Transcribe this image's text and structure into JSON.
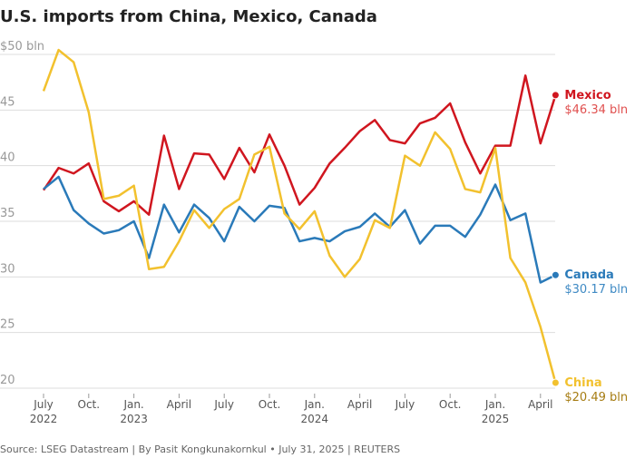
{
  "chart_data": {
    "type": "line",
    "title": "U.S. imports from China, Mexico, Canada",
    "source": "Source: LSEG Datastream | By Pasit Kongkunakornkul • July 31, 2025 | REUTERS",
    "categories": [
      [
        "July",
        "2022"
      ],
      null,
      null,
      [
        "Oct."
      ],
      null,
      null,
      [
        "Jan.",
        "2023"
      ],
      null,
      null,
      [
        "April"
      ],
      null,
      null,
      [
        "July"
      ],
      null,
      null,
      [
        "Oct."
      ],
      null,
      null,
      [
        "Jan.",
        "2024"
      ],
      null,
      null,
      [
        "April"
      ],
      null,
      null,
      [
        "July"
      ],
      null,
      null,
      [
        "Oct."
      ],
      null,
      null,
      [
        "Jan.",
        "2025"
      ],
      null,
      null,
      [
        "April"
      ],
      null
    ],
    "ylim": [
      20,
      50
    ],
    "yticks": [
      20,
      25,
      30,
      35,
      40,
      {
        "value": 45,
        "label": "45"
      },
      {
        "value": 50,
        "label": "$50 bln"
      }
    ],
    "grid": true,
    "series": [
      {
        "name": "Mexico",
        "color": "#d0161f",
        "label_color": "#e0504f",
        "values": [
          37.8,
          39.8,
          39.3,
          40.2,
          36.8,
          35.9,
          36.8,
          35.6,
          42.7,
          37.9,
          41.1,
          41.0,
          38.8,
          41.6,
          39.4,
          42.8,
          40.0,
          36.5,
          38.0,
          40.2,
          41.6,
          43.1,
          44.1,
          42.3,
          42.0,
          43.8,
          44.3,
          45.6,
          42.1,
          39.3,
          41.8,
          41.8,
          48.1,
          42.0,
          46.34
        ],
        "value_labels": [
          null,
          null,
          null,
          null,
          null,
          null,
          null,
          null,
          null,
          null,
          null,
          null,
          null,
          null,
          null,
          null,
          null,
          null,
          null,
          null,
          null,
          null,
          null,
          null,
          null,
          null,
          null,
          null,
          null,
          null,
          null,
          null,
          null,
          null,
          "$46.34 bln"
        ]
      },
      {
        "name": "Canada",
        "color": "#2a7ab9",
        "label_color": "#3f8ac4",
        "values": [
          37.9,
          39.0,
          36.0,
          34.8,
          33.9,
          34.2,
          35.0,
          31.7,
          36.5,
          34.0,
          36.5,
          35.3,
          33.2,
          36.3,
          35.0,
          36.4,
          36.2,
          33.2,
          33.5,
          33.2,
          34.1,
          34.5,
          35.7,
          34.5,
          36.0,
          33.0,
          34.6,
          34.6,
          33.6,
          35.6,
          38.3,
          35.1,
          35.7,
          29.5,
          30.17
        ],
        "value_labels": [
          null,
          null,
          null,
          null,
          null,
          null,
          null,
          null,
          null,
          null,
          null,
          null,
          null,
          null,
          null,
          null,
          null,
          null,
          null,
          null,
          null,
          null,
          null,
          null,
          null,
          null,
          null,
          null,
          null,
          null,
          null,
          null,
          null,
          null,
          "$30.17 bln"
        ]
      },
      {
        "name": "China",
        "color": "#f2c12e",
        "label_color": "#a67c12",
        "values": [
          46.7,
          50.4,
          49.3,
          44.8,
          37.0,
          37.3,
          38.2,
          30.7,
          30.9,
          33.2,
          36.0,
          34.4,
          36.1,
          37.0,
          41.0,
          41.7,
          35.7,
          34.3,
          35.9,
          31.9,
          30.0,
          31.6,
          35.1,
          34.4,
          40.9,
          40.0,
          43.0,
          41.5,
          37.9,
          37.6,
          41.6,
          31.7,
          29.5,
          25.5,
          20.49
        ],
        "value_labels": [
          null,
          null,
          null,
          null,
          null,
          null,
          null,
          null,
          null,
          null,
          null,
          null,
          null,
          null,
          null,
          null,
          null,
          null,
          null,
          null,
          null,
          null,
          null,
          null,
          null,
          null,
          null,
          null,
          null,
          null,
          null,
          null,
          null,
          null,
          "$20.49 bln"
        ]
      }
    ]
  }
}
